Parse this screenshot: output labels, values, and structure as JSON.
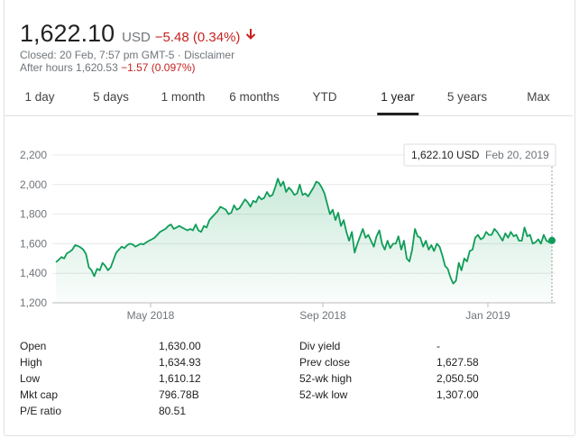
{
  "quote": {
    "price": "1,622.10",
    "currency": "USD",
    "change": "−5.48 (0.34%)",
    "closed_text": "Closed: 20 Feb, 7:57 pm GMT-5 · Disclaimer",
    "after_hours_label": "After hours 1,620.53",
    "after_hours_change": "−1.57 (0.097%)"
  },
  "tabs": [
    "1 day",
    "5 days",
    "1 month",
    "6 months",
    "YTD",
    "1 year",
    "5 years",
    "Max"
  ],
  "active_tab": "1 year",
  "tooltip": {
    "value": "1,622.10 USD",
    "date": "Feb 20, 2019"
  },
  "colors": {
    "line": "#0f9d58",
    "negative": "#c5221f",
    "muted": "#70757a"
  },
  "chart_data": {
    "type": "area",
    "y_ticks": [
      "2,200",
      "2,000",
      "1,800",
      "1,600",
      "1,400",
      "1,200"
    ],
    "x_ticks": [
      "May 2018",
      "Sep 2018",
      "Jan 2019"
    ],
    "ylim": [
      1200,
      2200
    ],
    "grid": true,
    "series": [
      {
        "values": [
          1475,
          1490,
          1510,
          1500,
          1535,
          1545,
          1560,
          1590,
          1585,
          1575,
          1560,
          1530,
          1440,
          1420,
          1380,
          1430,
          1420,
          1470,
          1450,
          1420,
          1440,
          1490,
          1540,
          1560,
          1580,
          1570,
          1590,
          1600,
          1595,
          1580,
          1590,
          1600,
          1595,
          1610,
          1620,
          1630,
          1640,
          1660,
          1680,
          1690,
          1700,
          1720,
          1730,
          1700,
          1710,
          1720,
          1710,
          1700,
          1690,
          1700,
          1690,
          1730,
          1690,
          1680,
          1720,
          1710,
          1760,
          1780,
          1800,
          1820,
          1850,
          1840,
          1830,
          1800,
          1810,
          1860,
          1830,
          1840,
          1870,
          1900,
          1880,
          1850,
          1890,
          1880,
          1920,
          1900,
          1910,
          1950,
          1920,
          1930,
          1980,
          2040,
          1990,
          2020,
          1950,
          1980,
          1960,
          1930,
          1940,
          2000,
          1930,
          1940,
          1920,
          1950,
          1980,
          2020,
          2010,
          1980,
          1940,
          1870,
          1800,
          1830,
          1760,
          1810,
          1720,
          1760,
          1680,
          1620,
          1680,
          1540,
          1600,
          1650,
          1700,
          1640,
          1660,
          1620,
          1580,
          1650,
          1690,
          1600,
          1560,
          1620,
          1570,
          1600,
          1600,
          1650,
          1560,
          1620,
          1500,
          1480,
          1560,
          1700,
          1650,
          1640,
          1580,
          1620,
          1560,
          1590,
          1550,
          1600,
          1580,
          1520,
          1450,
          1430,
          1370,
          1330,
          1350,
          1470,
          1420,
          1500,
          1480,
          1550,
          1560,
          1640,
          1660,
          1630,
          1640,
          1680,
          1660,
          1660,
          1700,
          1680,
          1650,
          1620,
          1670,
          1640,
          1680,
          1650,
          1660,
          1620,
          1620,
          1710,
          1650,
          1660,
          1600,
          1610,
          1630,
          1600,
          1660,
          1620,
          1610,
          1622
        ]
      }
    ]
  },
  "stats": [
    {
      "label": "Open",
      "value": "1,630.00"
    },
    {
      "label": "High",
      "value": "1,634.93"
    },
    {
      "label": "Low",
      "value": "1,610.12"
    },
    {
      "label": "Mkt cap",
      "value": "796.78B"
    },
    {
      "label": "P/E ratio",
      "value": "80.51"
    },
    {
      "label": "Div yield",
      "value": "-"
    },
    {
      "label": "Prev close",
      "value": "1,627.58"
    },
    {
      "label": "52-wk high",
      "value": "2,050.50"
    },
    {
      "label": "52-wk low",
      "value": "1,307.00"
    }
  ]
}
